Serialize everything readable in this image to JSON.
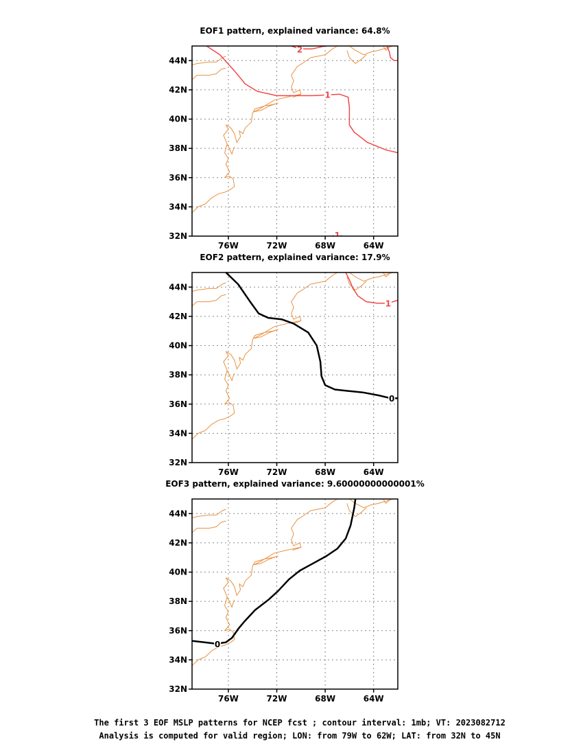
{
  "colors": {
    "coast": "#e8913f",
    "positive_contour": "#f04848",
    "zero_contour": "#000000",
    "grid": "#888888"
  },
  "lon_range": [
    -79,
    -62
  ],
  "lat_range": [
    32,
    45
  ],
  "x_ticks": [
    {
      "value": -76,
      "label": "76W"
    },
    {
      "value": -72,
      "label": "72W"
    },
    {
      "value": -68,
      "label": "68W"
    },
    {
      "value": -64,
      "label": "64W"
    }
  ],
  "y_ticks": [
    {
      "value": 32,
      "label": "32N"
    },
    {
      "value": 34,
      "label": "34N"
    },
    {
      "value": 36,
      "label": "36N"
    },
    {
      "value": 38,
      "label": "38N"
    },
    {
      "value": 40,
      "label": "40N"
    },
    {
      "value": 42,
      "label": "42N"
    },
    {
      "value": 44,
      "label": "44N"
    }
  ],
  "coastline": [
    [
      [
        -79,
        43.7
      ],
      [
        -78.6,
        43.8
      ],
      [
        -77.6,
        43.9
      ],
      [
        -77.0,
        43.9
      ],
      [
        -76.5,
        44.2
      ],
      [
        -76.2,
        44.3
      ]
    ],
    [
      [
        -79,
        42.7
      ],
      [
        -78.6,
        43.0
      ],
      [
        -77.6,
        43.0
      ],
      [
        -77.0,
        43.1
      ],
      [
        -76.6,
        43.4
      ],
      [
        -76.2,
        43.5
      ]
    ],
    [
      [
        -79,
        33.6
      ],
      [
        -78.5,
        34.0
      ],
      [
        -77.9,
        34.2
      ],
      [
        -77.4,
        34.6
      ],
      [
        -76.8,
        34.9
      ],
      [
        -76.3,
        35.0
      ],
      [
        -75.8,
        35.2
      ],
      [
        -75.5,
        35.4
      ],
      [
        -75.6,
        35.9
      ],
      [
        -75.9,
        36.1
      ],
      [
        -76.3,
        36.0
      ],
      [
        -75.9,
        36.4
      ],
      [
        -76.2,
        36.9
      ],
      [
        -76.0,
        37.3
      ],
      [
        -76.3,
        37.7
      ],
      [
        -76.1,
        38.3
      ],
      [
        -76.4,
        38.9
      ],
      [
        -76.0,
        39.3
      ],
      [
        -76.2,
        39.6
      ],
      [
        -75.8,
        39.4
      ],
      [
        -75.5,
        39.0
      ],
      [
        -75.3,
        38.4
      ],
      [
        -75.0,
        38.8
      ],
      [
        -75.1,
        39.2
      ],
      [
        -74.8,
        39.0
      ],
      [
        -74.6,
        39.4
      ],
      [
        -74.1,
        39.8
      ],
      [
        -74.0,
        40.4
      ],
      [
        -73.8,
        40.7
      ],
      [
        -73.0,
        40.9
      ],
      [
        -72.3,
        41.0
      ],
      [
        -71.9,
        41.1
      ],
      [
        -72.6,
        40.9
      ],
      [
        -73.3,
        40.6
      ],
      [
        -73.9,
        40.5
      ],
      [
        -73.4,
        40.7
      ],
      [
        -72.2,
        41.3
      ],
      [
        -71.2,
        41.5
      ],
      [
        -70.6,
        41.6
      ],
      [
        -70.0,
        41.7
      ],
      [
        -70.1,
        42.0
      ],
      [
        -70.6,
        41.8
      ],
      [
        -70.8,
        42.2
      ],
      [
        -70.6,
        42.6
      ],
      [
        -70.8,
        43.0
      ],
      [
        -70.3,
        43.6
      ],
      [
        -69.9,
        43.8
      ],
      [
        -69.2,
        44.2
      ],
      [
        -68.6,
        44.3
      ],
      [
        -68.0,
        44.4
      ],
      [
        -67.4,
        44.8
      ],
      [
        -67.0,
        45.0
      ]
    ],
    [
      [
        -66.0,
        45.0
      ],
      [
        -65.5,
        44.7
      ],
      [
        -64.8,
        44.4
      ],
      [
        -64.2,
        44.6
      ],
      [
        -63.6,
        44.7
      ],
      [
        -62.8,
        44.9
      ],
      [
        -62.4,
        45.0
      ]
    ],
    [
      [
        -66.2,
        44.7
      ],
      [
        -66.0,
        44.2
      ],
      [
        -65.5,
        43.8
      ],
      [
        -65.0,
        44.1
      ],
      [
        -64.6,
        44.4
      ]
    ],
    [
      [
        -76.1,
        38.3
      ],
      [
        -75.7,
        37.6
      ],
      [
        -75.6,
        37.9
      ],
      [
        -75.5,
        38.1
      ]
    ],
    [
      [
        -70.0,
        41.7
      ],
      [
        -70.3,
        41.6
      ],
      [
        -70.7,
        41.5
      ]
    ],
    [
      [
        -63.2,
        45.0
      ],
      [
        -63.0,
        44.7
      ],
      [
        -62.7,
        44.9
      ]
    ]
  ],
  "panels": [
    {
      "title": "EOF1 pattern, explained variance: 64.8%",
      "contours": [
        {
          "level": 1,
          "label": "1",
          "color": "#f04848",
          "points": [
            [
              -77.8,
              45.0
            ],
            [
              -76.7,
              44.4
            ],
            [
              -75.5,
              43.3
            ],
            [
              -74.6,
              42.4
            ],
            [
              -73.6,
              41.9
            ],
            [
              -72.0,
              41.6
            ],
            [
              -69.0,
              41.6
            ],
            [
              -66.8,
              41.7
            ],
            [
              -66.1,
              41.5
            ],
            [
              -66.0,
              40.8
            ],
            [
              -66.0,
              39.6
            ],
            [
              -65.6,
              39.1
            ],
            [
              -64.5,
              38.4
            ],
            [
              -63.0,
              37.9
            ],
            [
              -62.0,
              37.7
            ]
          ],
          "label_at": [
            -67.8,
            41.7
          ]
        },
        {
          "level": 2,
          "label": "2",
          "color": "#f04848",
          "points": [
            [
              -70.8,
              45.0
            ],
            [
              -70.1,
              44.8
            ],
            [
              -69.1,
              44.8
            ],
            [
              -68.0,
              45.0
            ]
          ],
          "label_at": [
            -70.1,
            44.8
          ]
        },
        {
          "level": 2,
          "label": "",
          "color": "#f04848",
          "points": [
            [
              -62.9,
              45.0
            ],
            [
              -62.7,
              44.6
            ],
            [
              -62.6,
              44.2
            ],
            [
              -62.3,
              44.0
            ],
            [
              -62.0,
              44.0
            ]
          ]
        },
        {
          "level": 1,
          "label": "1",
          "color": "#f04848",
          "points": [
            [
              -67.8,
              31.9
            ],
            [
              -67.0,
              32.1
            ],
            [
              -66.2,
              31.9
            ]
          ],
          "label_at": [
            -67.0,
            32.1
          ]
        }
      ]
    },
    {
      "title": "EOF2 pattern, explained variance: 17.9%",
      "contours": [
        {
          "level": 0,
          "label": "0",
          "color": "#000000",
          "points": [
            [
              -76.2,
              45.0
            ],
            [
              -75.2,
              44.2
            ],
            [
              -74.2,
              43.0
            ],
            [
              -73.5,
              42.2
            ],
            [
              -72.7,
              41.9
            ],
            [
              -71.6,
              41.8
            ],
            [
              -70.6,
              41.5
            ],
            [
              -69.4,
              40.9
            ],
            [
              -68.7,
              40.0
            ],
            [
              -68.4,
              38.9
            ],
            [
              -68.3,
              37.9
            ],
            [
              -68.0,
              37.3
            ],
            [
              -67.2,
              37.0
            ],
            [
              -66.1,
              36.9
            ],
            [
              -64.9,
              36.8
            ],
            [
              -63.6,
              36.6
            ],
            [
              -62.6,
              36.4
            ],
            [
              -62.0,
              36.4
            ]
          ],
          "label_at": [
            -62.5,
            36.4
          ]
        },
        {
          "level": 1,
          "label": "1",
          "color": "#f04848",
          "points": [
            [
              -66.3,
              45.0
            ],
            [
              -66.0,
              44.5
            ],
            [
              -65.7,
              43.9
            ],
            [
              -65.3,
              43.4
            ],
            [
              -64.6,
              43.0
            ],
            [
              -63.7,
              42.9
            ],
            [
              -62.8,
              42.9
            ],
            [
              -62.0,
              43.1
            ]
          ],
          "label_at": [
            -62.8,
            42.9
          ]
        }
      ]
    },
    {
      "title": "EOF3 pattern, explained variance: 9.60000000000001%",
      "contours": [
        {
          "level": 0,
          "label": "0",
          "color": "#000000",
          "points": [
            [
              -79.0,
              35.3
            ],
            [
              -78.0,
              35.2
            ],
            [
              -77.0,
              35.1
            ],
            [
              -76.2,
              35.2
            ],
            [
              -75.7,
              35.5
            ],
            [
              -75.2,
              36.1
            ],
            [
              -74.7,
              36.6
            ],
            [
              -73.8,
              37.4
            ],
            [
              -72.7,
              38.1
            ],
            [
              -71.9,
              38.7
            ],
            [
              -71.0,
              39.5
            ],
            [
              -70.1,
              40.1
            ],
            [
              -69.0,
              40.6
            ],
            [
              -67.9,
              41.1
            ],
            [
              -67.0,
              41.6
            ],
            [
              -66.3,
              42.3
            ],
            [
              -65.9,
              43.2
            ],
            [
              -65.6,
              44.4
            ],
            [
              -65.5,
              45.0
            ]
          ],
          "label_at": [
            -76.9,
            35.1
          ]
        }
      ]
    }
  ],
  "footer": {
    "line1": "The first 3 EOF MSLP patterns for NCEP fcst ; contour interval: 1mb; VT: 2023082712",
    "line2": "Analysis is computed for valid region; LON: from 79W to 62W; LAT: from 32N to 45N"
  }
}
